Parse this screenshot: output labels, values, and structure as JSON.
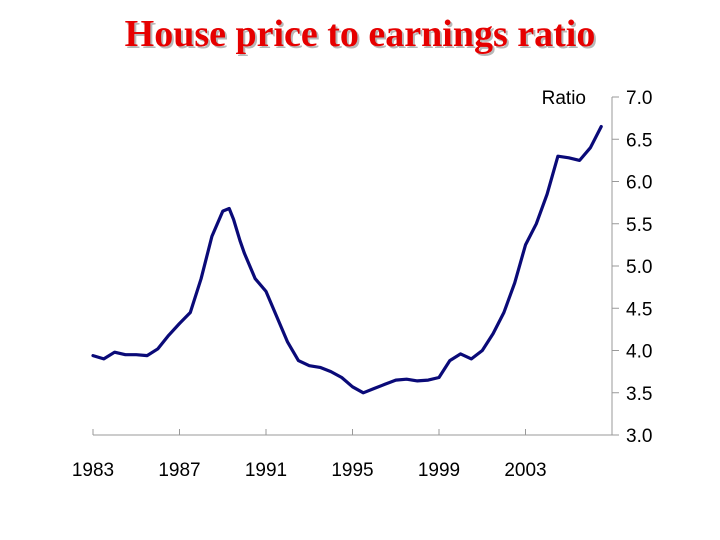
{
  "chart_data": {
    "type": "line",
    "title": "House price to earnings ratio",
    "ylabel": "Ratio",
    "xlabel": "",
    "ylim": [
      3.0,
      7.0
    ],
    "xlim": [
      1983,
      2007
    ],
    "y_ticks": [
      "7.0",
      "6.5",
      "6.0",
      "5.5",
      "5.0",
      "4.5",
      "4.0",
      "3.5",
      "3.0"
    ],
    "x_ticks": [
      "1983",
      "1987",
      "1991",
      "1995",
      "1999",
      "2003"
    ],
    "y_axis_position": "right",
    "grid": false,
    "line_color": "#0a0a78",
    "series": [
      {
        "x": [
          1983.0,
          1983.5,
          1984.0,
          1984.5,
          1985.0,
          1985.5,
          1986.0,
          1986.5,
          1987.0,
          1987.5,
          1988.0,
          1988.5,
          1989.0,
          1989.3,
          1989.5,
          1989.8,
          1990.0,
          1990.5,
          1991.0,
          1991.5,
          1992.0,
          1992.5,
          1993.0,
          1993.5,
          1994.0,
          1994.5,
          1995.0,
          1995.5,
          1996.0,
          1996.5,
          1997.0,
          1997.5,
          1998.0,
          1998.5,
          1999.0,
          1999.5,
          2000.0,
          2000.5,
          2001.0,
          2001.5,
          2002.0,
          2002.5,
          2003.0,
          2003.5,
          2004.0,
          2004.5,
          2005.0,
          2005.5,
          2006.0,
          2006.5
        ],
        "values": [
          3.94,
          3.9,
          3.98,
          3.95,
          3.95,
          3.94,
          4.02,
          4.18,
          4.32,
          4.45,
          4.85,
          5.35,
          5.65,
          5.68,
          5.55,
          5.3,
          5.15,
          4.85,
          4.7,
          4.4,
          4.1,
          3.88,
          3.82,
          3.8,
          3.75,
          3.68,
          3.57,
          3.5,
          3.55,
          3.6,
          3.65,
          3.66,
          3.64,
          3.65,
          3.68,
          3.88,
          3.96,
          3.9,
          4.0,
          4.2,
          4.45,
          4.8,
          5.25,
          5.5,
          5.85,
          6.3,
          6.28,
          6.25,
          6.4,
          6.65
        ]
      }
    ]
  }
}
